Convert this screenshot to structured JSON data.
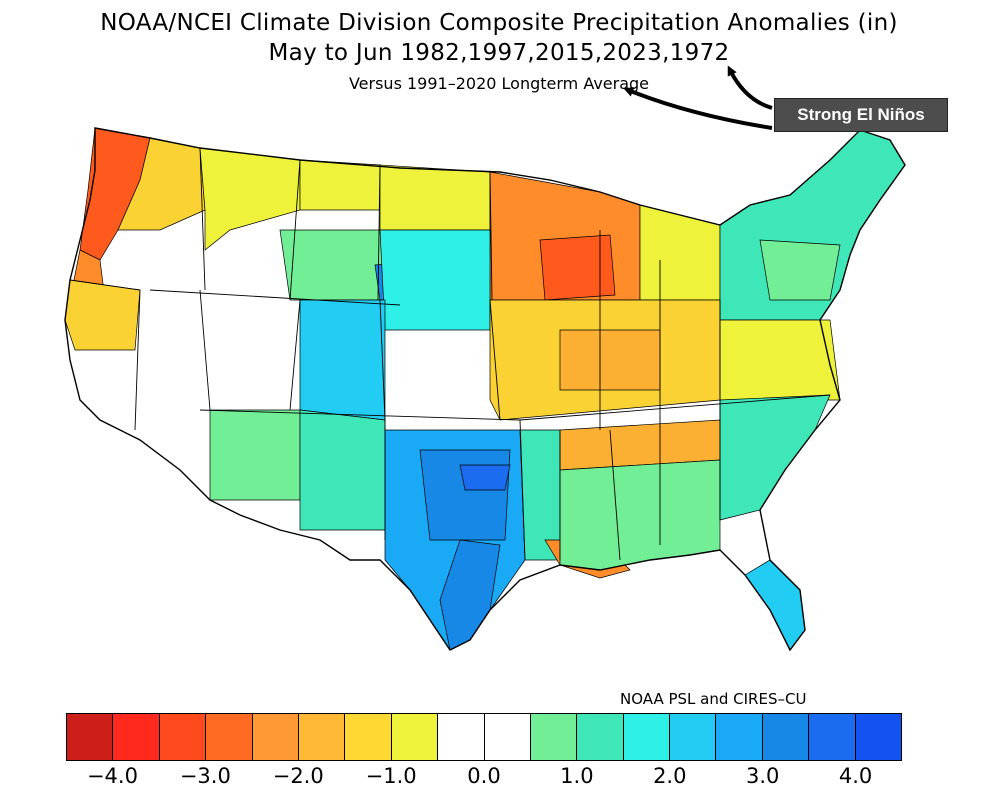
{
  "title": {
    "line1": "NOAA/NCEI Climate Division Composite Precipitation Anomalies (in)",
    "line2": "May to Jun  1982,1997,2015,2023,1972",
    "line3": "Versus 1991–2020 Longterm Average"
  },
  "annotation": {
    "label": "Strong El Niños"
  },
  "credit": "NOAA PSL and CIRES–CU",
  "legend": {
    "colors": [
      "#cc1f1a",
      "#ff2a1d",
      "#ff4a1d",
      "#ff6b22",
      "#ff9933",
      "#ffb833",
      "#ffd833",
      "#eef23a",
      "#ffffff",
      "#ffffff",
      "#72ee96",
      "#3ee6b8",
      "#2ef0e6",
      "#22ccf2",
      "#1aaaf5",
      "#1888e6",
      "#1c6cf0",
      "#1452f2"
    ],
    "ticks": [
      {
        "label": "−4.0",
        "value": -4.0
      },
      {
        "label": "−3.0",
        "value": -3.0
      },
      {
        "label": "−2.0",
        "value": -2.0
      },
      {
        "label": "−1.0",
        "value": -1.0
      },
      {
        "label": "0.0",
        "value": 0.0
      },
      {
        "label": "1.0",
        "value": 1.0
      },
      {
        "label": "2.0",
        "value": 2.0
      },
      {
        "label": "3.0",
        "value": 3.0
      },
      {
        "label": "4.0",
        "value": 4.0
      }
    ]
  },
  "palette": {
    "red_dark": "#e8401e",
    "red": "#ff5a1d",
    "orange": "#ff8c2a",
    "orange_light": "#fbb034",
    "yellow_orange": "#fbd233",
    "yellow": "#eef23a",
    "white": "#ffffff",
    "green": "#72ee96",
    "teal": "#3ee6b8",
    "cyan": "#2ef0e6",
    "sky": "#22ccf2",
    "blue_light": "#1aaaf5",
    "blue": "#1888e6",
    "blue_dark": "#1c6cf0"
  }
}
